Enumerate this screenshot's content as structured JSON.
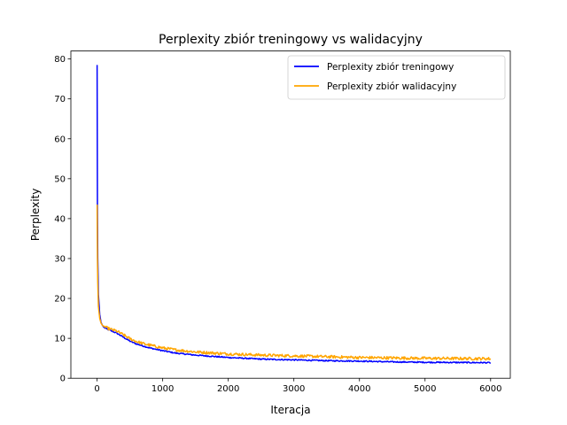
{
  "chart_data": {
    "type": "line",
    "title": "Perplexity zbiór treningowy vs walidacyjny",
    "xlabel": "Iteracja",
    "ylabel": "Perplexity",
    "xlim": [
      -400,
      6300
    ],
    "ylim": [
      0,
      82
    ],
    "xticks": [
      0,
      1000,
      2000,
      3000,
      4000,
      5000,
      6000
    ],
    "yticks": [
      0,
      10,
      20,
      30,
      40,
      50,
      60,
      70,
      80
    ],
    "grid": false,
    "legend_position": "top-right",
    "series": [
      {
        "name": "Perplexity zbiór treningowy",
        "color": "#0000ff",
        "noise": 0.15,
        "x": [
          0,
          5,
          10,
          20,
          40,
          60,
          80,
          100,
          150,
          200,
          300,
          400,
          500,
          600,
          700,
          800,
          1000,
          1200,
          1500,
          2000,
          2500,
          3000,
          3500,
          4000,
          4500,
          5000,
          5500,
          6000
        ],
        "y": [
          78.5,
          43.0,
          30.0,
          21.0,
          16.0,
          14.0,
          13.3,
          12.8,
          12.3,
          12.0,
          11.3,
          10.3,
          9.3,
          8.6,
          8.1,
          7.6,
          6.9,
          6.3,
          5.8,
          5.2,
          4.8,
          4.6,
          4.4,
          4.3,
          4.1,
          4.0,
          3.95,
          3.9
        ]
      },
      {
        "name": "Perplexity zbiór walidacyjny",
        "color": "#ffa500",
        "noise": 0.35,
        "x": [
          0,
          5,
          10,
          20,
          40,
          60,
          80,
          100,
          150,
          200,
          300,
          400,
          500,
          600,
          700,
          800,
          1000,
          1200,
          1500,
          2000,
          2500,
          3000,
          3500,
          4000,
          4500,
          5000,
          5500,
          6000
        ],
        "y": [
          43.5,
          30.0,
          24.0,
          18.0,
          15.0,
          13.8,
          13.3,
          13.0,
          12.6,
          12.3,
          11.8,
          10.9,
          9.9,
          9.2,
          8.7,
          8.3,
          7.6,
          7.1,
          6.6,
          6.1,
          5.8,
          5.6,
          5.4,
          5.2,
          5.1,
          5.0,
          4.95,
          4.9
        ]
      }
    ]
  }
}
